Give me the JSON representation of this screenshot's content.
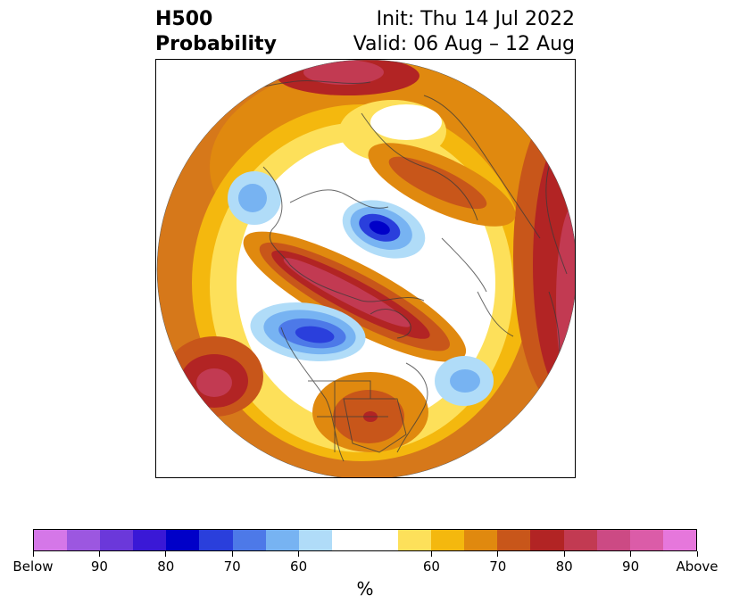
{
  "title": {
    "left_line1": "H500",
    "left_line2": "Probability",
    "right_line1": "Init: Thu 14 Jul 2022",
    "right_line2": "Valid: 06 Aug – 12 Aug"
  },
  "colorbar": {
    "unit": "%",
    "colors": [
      "#d577e8",
      "#9c57e0",
      "#6b38da",
      "#3a18d6",
      "#0000c8",
      "#2a3fdc",
      "#4d79e8",
      "#77b3f2",
      "#b0dcf8",
      "#ffffff",
      "#ffffff",
      "#fde05a",
      "#f4b80e",
      "#e0890f",
      "#c8561a",
      "#b22424",
      "#c23a52",
      "#cc4a84",
      "#db5ca8",
      "#e677dc"
    ],
    "labels": [
      "Below",
      "90",
      "80",
      "70",
      "60",
      "60",
      "70",
      "80",
      "90",
      "Above"
    ]
  },
  "map": {
    "projection": "north-polar-stereographic",
    "field": "500 hPa height probability"
  }
}
